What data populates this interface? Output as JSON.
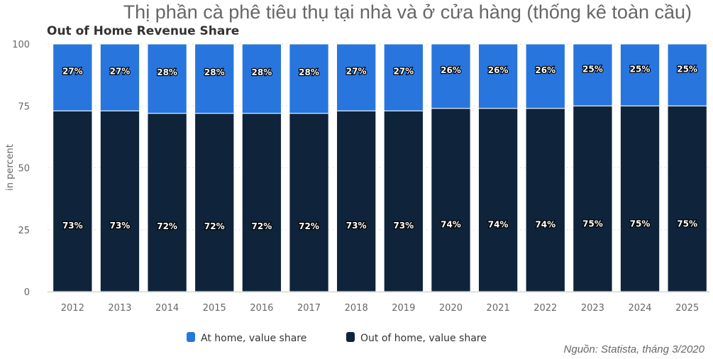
{
  "title": "Thị phần cà phê tiêu thụ tại nhà và ở cửa hàng (thống kê toàn cầu)",
  "source": "Nguồn: Statista, tháng 3/2020",
  "chart_data": {
    "type": "bar",
    "stacked": true,
    "title": "Out of Home Revenue Share",
    "xlabel": "",
    "ylabel": "in percent",
    "ylim": [
      0,
      100
    ],
    "yticks": [
      "0",
      "25",
      "50",
      "75",
      "100"
    ],
    "grid": true,
    "legend_position": "bottom",
    "categories": [
      "2012",
      "2013",
      "2014",
      "2015",
      "2016",
      "2017",
      "2018",
      "2019",
      "2020",
      "2021",
      "2022",
      "2023",
      "2024",
      "2025"
    ],
    "series": [
      {
        "name": "Out of home, value share",
        "color": "#0f243b",
        "values": [
          73,
          73,
          72,
          72,
          72,
          72,
          73,
          73,
          74,
          74,
          74,
          75,
          75,
          75
        ],
        "labels": [
          "73%",
          "73%",
          "72%",
          "72%",
          "72%",
          "72%",
          "73%",
          "73%",
          "74%",
          "74%",
          "74%",
          "75%",
          "75%",
          "75%"
        ]
      },
      {
        "name": "At home, value share",
        "color": "#2876dd",
        "values": [
          27,
          27,
          28,
          28,
          28,
          28,
          27,
          27,
          26,
          26,
          26,
          25,
          25,
          25
        ],
        "labels": [
          "27%",
          "27%",
          "28%",
          "28%",
          "28%",
          "28%",
          "27%",
          "27%",
          "26%",
          "26%",
          "26%",
          "25%",
          "25%",
          "25%"
        ]
      }
    ]
  }
}
